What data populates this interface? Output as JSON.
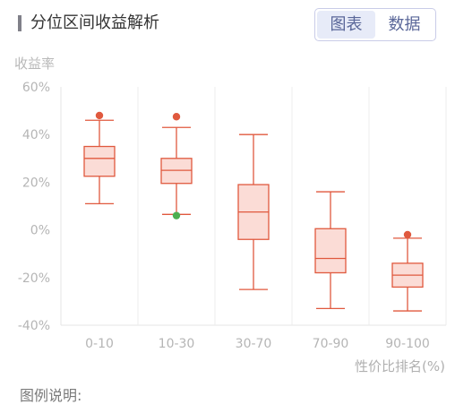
{
  "header": {
    "title": "分位区间收益解析",
    "toggle": {
      "chart_label": "图表",
      "data_label": "数据",
      "active": "chart"
    }
  },
  "footer": {
    "legend_title": "图例说明:"
  },
  "colors": {
    "box_stroke": "#e0593e",
    "box_fill": "#fbdcd6",
    "outlier_high": "#e0593e",
    "outlier_low": "#4caf50",
    "accent": "#5a6799"
  },
  "chart_data": {
    "type": "box",
    "ylabel": "收益率",
    "xlabel": "性价比排名(%)",
    "ylim": [
      -40,
      60
    ],
    "yticks": [
      "-40%",
      "-20%",
      "0%",
      "20%",
      "40%",
      "60%"
    ],
    "ytick_values": [
      -40,
      -20,
      0,
      20,
      40,
      60
    ],
    "grid": "vertical separators",
    "categories": [
      "0-10",
      "10-30",
      "30-70",
      "70-90",
      "90-100"
    ],
    "boxes": [
      {
        "category": "0-10",
        "min": 11,
        "q1": 22.5,
        "median": 30,
        "q3": 35,
        "max": 46,
        "outliers": [
          {
            "value": 48,
            "kind": "high"
          }
        ]
      },
      {
        "category": "10-30",
        "min": 6.5,
        "q1": 19.5,
        "median": 25,
        "q3": 30,
        "max": 43,
        "outliers": [
          {
            "value": 47.5,
            "kind": "high"
          },
          {
            "value": 6,
            "kind": "low"
          }
        ]
      },
      {
        "category": "30-70",
        "min": -25,
        "q1": -4,
        "median": 7.5,
        "q3": 19,
        "max": 40,
        "outliers": []
      },
      {
        "category": "70-90",
        "min": -33,
        "q1": -18,
        "median": -12,
        "q3": 0.5,
        "max": 16,
        "outliers": []
      },
      {
        "category": "90-100",
        "min": -34,
        "q1": -24,
        "median": -19,
        "q3": -14,
        "max": -3.5,
        "outliers": [
          {
            "value": -2,
            "kind": "high"
          }
        ]
      }
    ]
  }
}
